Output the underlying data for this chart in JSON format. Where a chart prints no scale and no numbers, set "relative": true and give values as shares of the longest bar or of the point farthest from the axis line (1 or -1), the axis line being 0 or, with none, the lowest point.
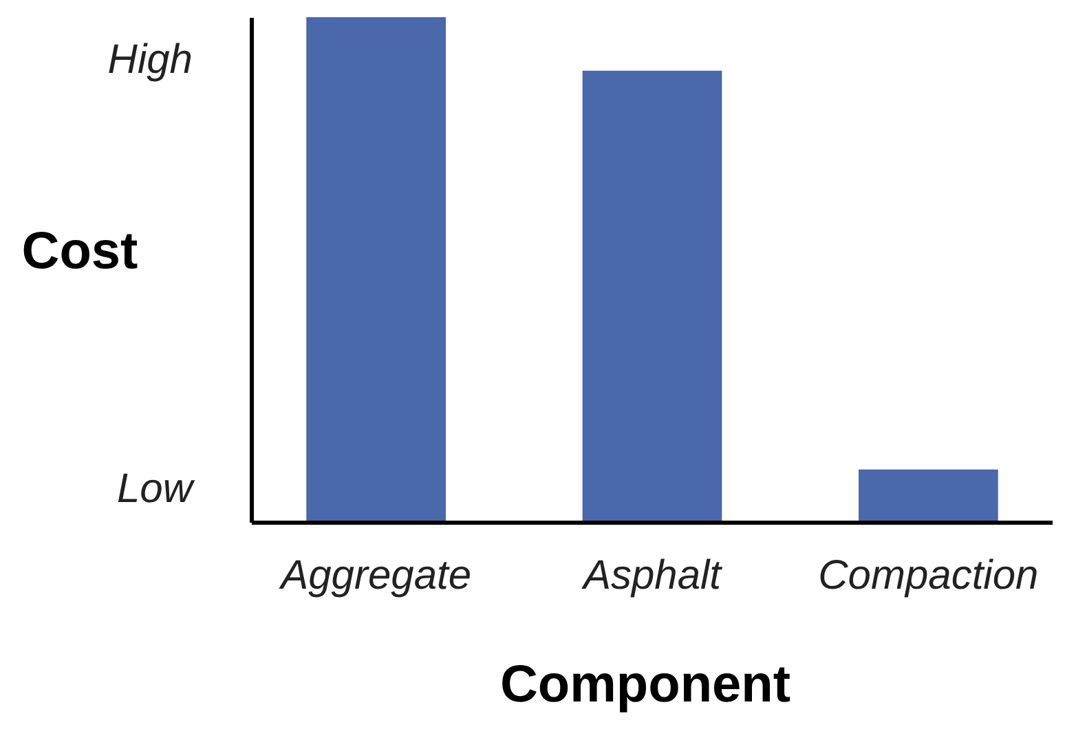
{
  "chart_data": {
    "type": "bar",
    "xlabel": "Component",
    "ylabel": "Cost",
    "categories": [
      "Aggregate",
      "Asphalt",
      "Compaction"
    ],
    "values": [
      1,
      0.894,
      0.104
    ],
    "color": "#4a68aa",
    "relative": true,
    "annotations": [
      "High",
      "Low"
    ]
  }
}
